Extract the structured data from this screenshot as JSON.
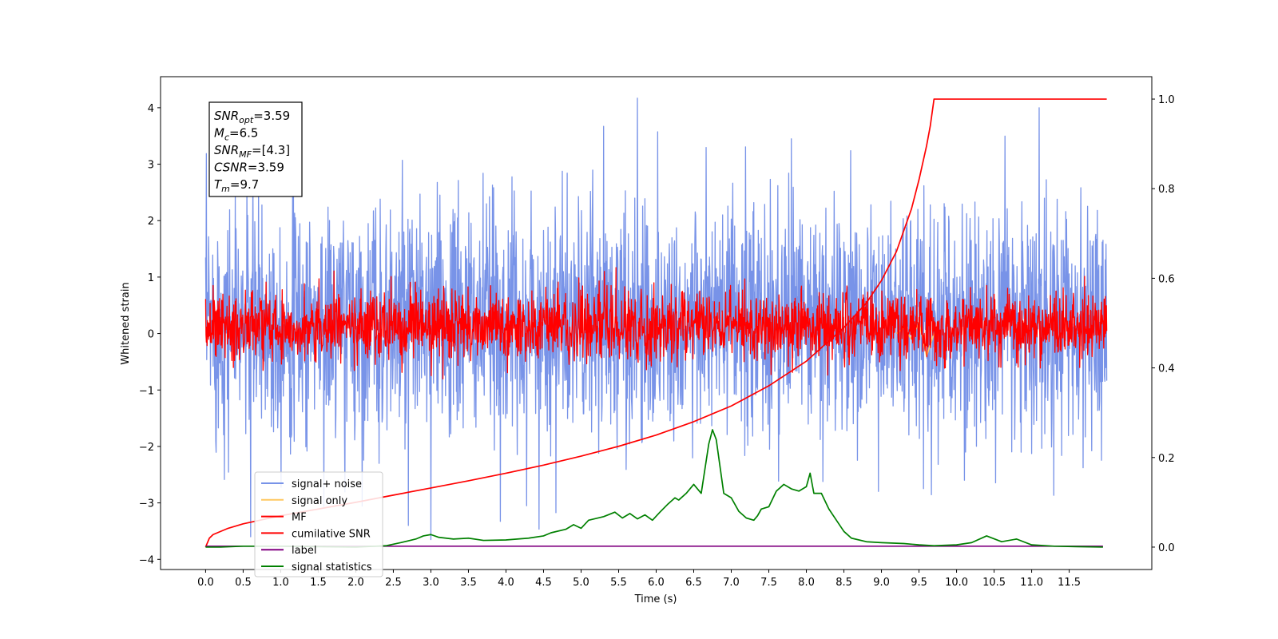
{
  "chart_data": {
    "type": "line",
    "title": "",
    "xlabel": "Time (s)",
    "ylabel": "Whitened strain",
    "xlim": [
      -0.6,
      12.6
    ],
    "ylim": [
      -4.18,
      4.55
    ],
    "y2lim": [
      -0.05,
      1.05
    ],
    "grid": false,
    "legend_position": "lower-left",
    "x_ticks": [
      0.0,
      0.5,
      1.0,
      1.5,
      2.0,
      2.5,
      3.0,
      3.5,
      4.0,
      4.5,
      5.0,
      5.5,
      6.0,
      6.5,
      7.0,
      7.5,
      8.0,
      8.5,
      9.0,
      9.5,
      10.0,
      10.5,
      11.0,
      11.5
    ],
    "x_tick_labels": [
      "0.0",
      "0.5",
      "1.0",
      "1.5",
      "2.0",
      "2.5",
      "3.0",
      "3.5",
      "4.0",
      "4.5",
      "5.0",
      "5.5",
      "6.0",
      "6.5",
      "7.0",
      "7.5",
      "8.0",
      "8.5",
      "9.0",
      "9.5",
      "10.0",
      "10.5",
      "11.0",
      "11.5"
    ],
    "y_ticks": [
      -4,
      -3,
      -2,
      -1,
      0,
      1,
      2,
      3,
      4
    ],
    "y_tick_labels": [
      "−4",
      "−3",
      "−2",
      "−1",
      "0",
      "1",
      "2",
      "3",
      "4"
    ],
    "y2_ticks": [
      0.0,
      0.2,
      0.4,
      0.6,
      0.8,
      1.0
    ],
    "y2_tick_labels": [
      "0.0",
      "0.2",
      "0.4",
      "0.6",
      "0.8",
      "1.0"
    ],
    "annotation": [
      {
        "base": "SNR",
        "sub": "opt",
        "value": "=3.59"
      },
      {
        "base": "M",
        "sub": "c",
        "value": "=6.5"
      },
      {
        "base": "SNR",
        "sub": "MF",
        "value": "=[4.3]"
      },
      {
        "base": "CSNR",
        "sub": "",
        "value": "=3.59"
      },
      {
        "base": "T",
        "sub": "m",
        "value": "=9.7"
      }
    ],
    "series": [
      {
        "name": "signal+ noise",
        "color": "#7893e8",
        "axis": "left",
        "kind": "noise",
        "x_range": [
          0.0,
          12.0
        ],
        "typical_range": [
          -1.5,
          1.9
        ],
        "notable_peaks": [
          [
            5.75,
            4.17
          ],
          [
            11.1,
            4.0
          ],
          [
            5.3,
            3.67
          ],
          [
            7.8,
            3.45
          ],
          [
            2.7,
            -3.4
          ],
          [
            3.0,
            -3.65
          ],
          [
            0.6,
            -3.6
          ]
        ]
      },
      {
        "name": "signal only",
        "color": "#ffc861",
        "axis": "left",
        "kind": "chirp",
        "x": [
          9.2,
          9.3,
          9.4,
          9.5,
          9.6,
          9.7
        ],
        "y": [
          0.0,
          0.1,
          -0.1,
          0.2,
          -0.4,
          0.0
        ]
      },
      {
        "name": "MF",
        "color": "#ff0000",
        "axis": "left",
        "kind": "noise",
        "x_range": [
          0.0,
          12.0
        ],
        "typical_range": [
          -0.35,
          0.6
        ],
        "notable_peaks": [
          [
            0.1,
            0.85
          ],
          [
            5.4,
            0.85
          ],
          [
            10.4,
            0.85
          ]
        ]
      },
      {
        "name": "cumilative SNR",
        "color": "#ff0000",
        "axis": "right",
        "kind": "line",
        "x": [
          0.0,
          0.05,
          0.1,
          0.3,
          0.5,
          1.0,
          1.5,
          2.0,
          2.5,
          3.0,
          3.5,
          4.0,
          4.5,
          5.0,
          5.5,
          6.0,
          6.5,
          7.0,
          7.5,
          8.0,
          8.5,
          8.8,
          9.0,
          9.2,
          9.4,
          9.5,
          9.6,
          9.65,
          9.7,
          10.0,
          11.0,
          12.0
        ],
        "y": [
          0.0,
          0.02,
          0.028,
          0.042,
          0.052,
          0.07,
          0.085,
          0.1,
          0.116,
          0.132,
          0.148,
          0.165,
          0.183,
          0.203,
          0.225,
          0.25,
          0.28,
          0.315,
          0.36,
          0.415,
          0.49,
          0.545,
          0.595,
          0.66,
          0.755,
          0.82,
          0.895,
          0.94,
          1.0,
          1.0,
          1.0,
          1.0
        ]
      },
      {
        "name": "label",
        "color": "#800080",
        "axis": "right",
        "kind": "line",
        "x": [
          0.0,
          11.95
        ],
        "y": [
          0.002,
          0.002
        ]
      },
      {
        "name": "signal statistics",
        "color": "#008000",
        "axis": "right",
        "kind": "line",
        "x": [
          0.0,
          0.2,
          0.5,
          1.0,
          1.5,
          2.0,
          2.4,
          2.6,
          2.8,
          2.9,
          3.0,
          3.1,
          3.3,
          3.5,
          3.7,
          4.0,
          4.3,
          4.5,
          4.6,
          4.8,
          4.9,
          5.0,
          5.1,
          5.3,
          5.45,
          5.55,
          5.65,
          5.75,
          5.85,
          5.95,
          6.05,
          6.15,
          6.25,
          6.3,
          6.4,
          6.5,
          6.6,
          6.7,
          6.75,
          6.8,
          6.85,
          6.9,
          7.0,
          7.1,
          7.2,
          7.3,
          7.35,
          7.4,
          7.5,
          7.6,
          7.7,
          7.8,
          7.9,
          8.0,
          8.05,
          8.1,
          8.2,
          8.3,
          8.4,
          8.5,
          8.6,
          8.8,
          9.0,
          9.3,
          9.5,
          9.7,
          10.0,
          10.2,
          10.4,
          10.6,
          10.8,
          11.0,
          11.3,
          11.6,
          11.95
        ],
        "y": [
          0.0,
          0.0,
          0.002,
          0.002,
          0.001,
          0.0,
          0.003,
          0.01,
          0.018,
          0.025,
          0.028,
          0.022,
          0.018,
          0.02,
          0.015,
          0.016,
          0.02,
          0.025,
          0.032,
          0.04,
          0.05,
          0.042,
          0.06,
          0.068,
          0.078,
          0.065,
          0.075,
          0.063,
          0.072,
          0.06,
          0.078,
          0.095,
          0.11,
          0.105,
          0.12,
          0.14,
          0.12,
          0.23,
          0.262,
          0.24,
          0.18,
          0.12,
          0.11,
          0.08,
          0.065,
          0.06,
          0.07,
          0.085,
          0.09,
          0.125,
          0.14,
          0.13,
          0.125,
          0.135,
          0.165,
          0.12,
          0.12,
          0.085,
          0.06,
          0.035,
          0.02,
          0.012,
          0.01,
          0.008,
          0.005,
          0.003,
          0.005,
          0.01,
          0.025,
          0.012,
          0.018,
          0.005,
          0.002,
          0.001,
          0.0
        ]
      }
    ]
  }
}
